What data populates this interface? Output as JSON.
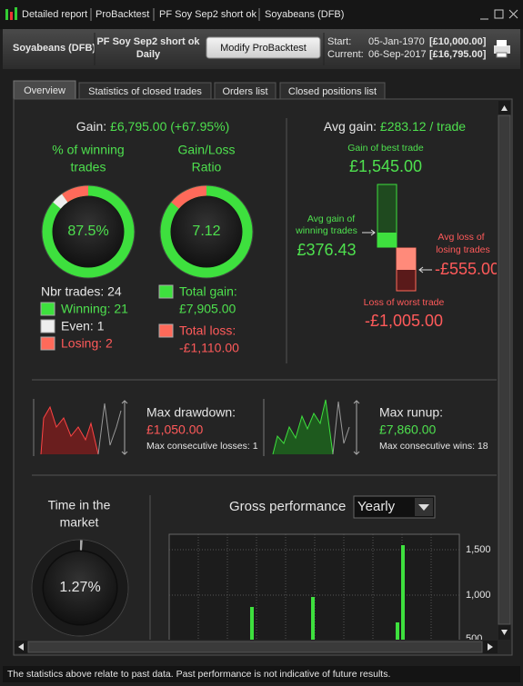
{
  "titlebar": {
    "items": [
      "Detailed report",
      "ProBacktest",
      "PF Soy Sep2 short ok",
      "Soyabeans (DFB)"
    ]
  },
  "header": {
    "instrument": "Soyabeans (DFB)",
    "system": "PF Soy Sep2 short ok",
    "period": "Daily",
    "button": "Modify ProBacktest",
    "start": {
      "label": "Start:",
      "date": "05-Jan-1970",
      "capital": "[£10,000.00]"
    },
    "current": {
      "label": "Current:",
      "date": "06-Sep-2017",
      "capital": "[£16,795.00]"
    }
  },
  "tabs": [
    "Overview",
    "Statistics of closed trades",
    "Orders list",
    "Closed positions list"
  ],
  "overview": {
    "gain": {
      "label": "Gain:",
      "value": "£6,795.00 (+67.95%)"
    },
    "winning_pct": {
      "title": [
        "% of winning",
        "trades"
      ],
      "value": "87.5%"
    },
    "ratio": {
      "title": [
        "Gain/Loss",
        "Ratio"
      ],
      "value": "7.12"
    },
    "trades": {
      "count": "Nbr trades: 24",
      "winning": "Winning: 21",
      "even": "Even: 1",
      "losing": "Losing: 2"
    },
    "totals": {
      "gain_label": "Total gain:",
      "gain": "£7,905.00",
      "loss_label": "Total loss:",
      "loss": "-£1,110.00"
    },
    "avg": {
      "label": "Avg gain:",
      "value": "£283.12 / trade",
      "best_label": "Gain of best trade",
      "best": "£1,545.00",
      "avg_win_label": [
        "Avg gain of",
        "winning trades"
      ],
      "avg_win": "£376.43",
      "avg_loss_label": [
        "Avg loss of",
        "losing trades"
      ],
      "avg_loss": "-£555.00",
      "worst_label": "Loss of worst trade",
      "worst": "-£1,005.00"
    },
    "drawdown": {
      "label": "Max drawdown:",
      "value": "£1,050.00",
      "sub": "Max consecutive losses: 1"
    },
    "runup": {
      "label": "Max runup:",
      "value": "£7,860.00",
      "sub": "Max consecutive wins: 18"
    },
    "market": {
      "title": [
        "Time in the",
        "market"
      ],
      "value": "1.27%"
    },
    "performance": {
      "title": "Gross performance",
      "period": "Yearly",
      "yticks": [
        "1,500",
        "1,000",
        "500"
      ]
    }
  },
  "footer": "The statistics above relate to past data. Past performance is not indicative of future results."
}
